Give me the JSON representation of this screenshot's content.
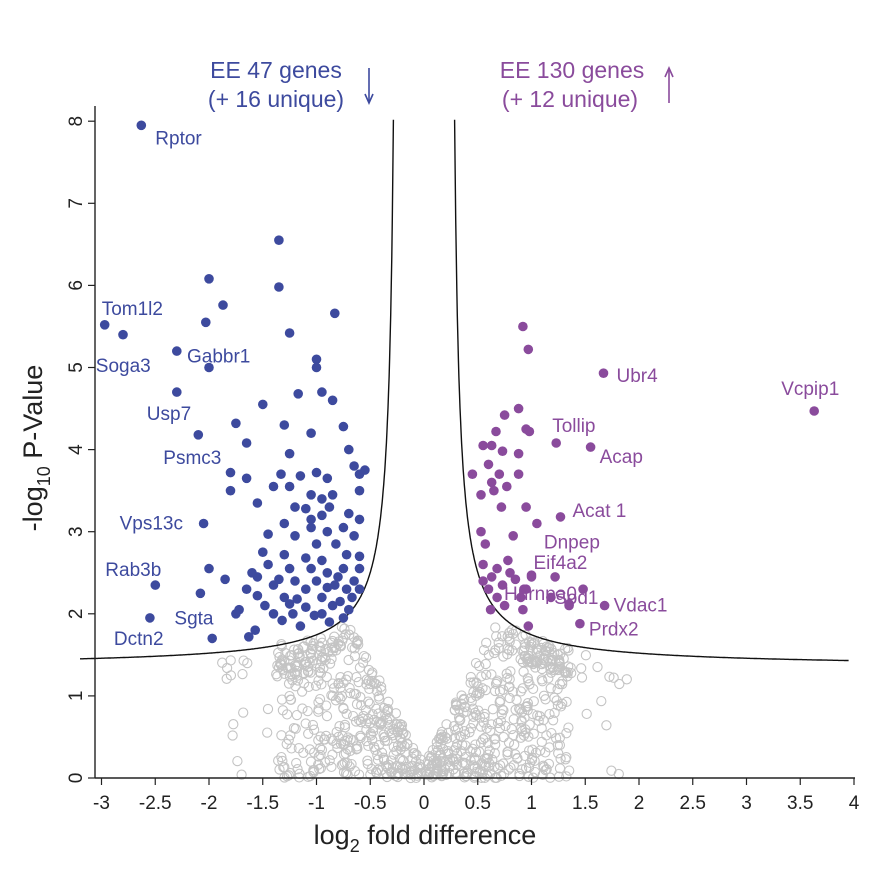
{
  "chart_data": {
    "type": "scatter",
    "title": "",
    "xlabel_main": "log",
    "xlabel_sub": "2",
    "xlabel_rest": " fold difference",
    "ylabel_pre": "-log",
    "ylabel_sub": "10",
    "ylabel_rest": " P-Value",
    "xlim": [
      -3.1,
      4.0
    ],
    "ylim": [
      0,
      8.2
    ],
    "x_ticks": [
      -3,
      -2.5,
      -2,
      -1.5,
      -1,
      -0.5,
      0,
      0.5,
      1,
      1.5,
      2,
      2.5,
      3,
      3.5,
      4
    ],
    "y_ticks": [
      0,
      1,
      2,
      3,
      4,
      5,
      6,
      7,
      8
    ],
    "colors": {
      "down": "#3d4a9e",
      "up": "#8a4b9c",
      "ns": "#c4c4c4",
      "curve": "#111111"
    },
    "annotations": {
      "down_line1": "EE 47 genes",
      "down_line2": "(+ 16 unique)",
      "up_line1": "EE 130 genes",
      "up_line2": "(+ 12 unique)"
    },
    "labeled_down": [
      {
        "name": "Rptor",
        "x": -2.63,
        "y": 7.95
      },
      {
        "name": "Tom1l2",
        "x": -2.97,
        "y": 5.52
      },
      {
        "name": "",
        "x": -2.8,
        "y": 5.4
      },
      {
        "name": "Soga3",
        "x": -2.3,
        "y": 5.2
      },
      {
        "name": "Gabbr1",
        "x": -2.0,
        "y": 5.0
      },
      {
        "name": "Usp7",
        "x": -2.3,
        "y": 4.7
      },
      {
        "name": "Psmc3",
        "x": -2.1,
        "y": 4.18
      },
      {
        "name": "Vps13c",
        "x": -2.05,
        "y": 3.1
      },
      {
        "name": "Rab3b",
        "x": -2.5,
        "y": 2.35
      },
      {
        "name": "Sgta",
        "x": -2.08,
        "y": 2.25
      },
      {
        "name": "Dctn2",
        "x": -2.55,
        "y": 1.95
      }
    ],
    "labeled_up": [
      {
        "name": "Ubr4",
        "x": 1.67,
        "y": 4.93
      },
      {
        "name": "Vcpip1",
        "x": 3.63,
        "y": 4.47
      },
      {
        "name": "Tollip",
        "x": 1.23,
        "y": 4.08
      },
      {
        "name": "Acap",
        "x": 1.55,
        "y": 4.03
      },
      {
        "name": "Acat 1",
        "x": 1.27,
        "y": 3.18
      },
      {
        "name": "Dnpep",
        "x": 1.05,
        "y": 3.1
      },
      {
        "name": "Eif4a2",
        "x": 1.0,
        "y": 2.47
      },
      {
        "name": "Sod1",
        "x": 1.35,
        "y": 2.12
      },
      {
        "name": "Hnrnpa0",
        "x": 0.93,
        "y": 2.3
      },
      {
        "name": "Vdac1",
        "x": 1.68,
        "y": 2.1
      },
      {
        "name": "Prdx2",
        "x": 1.45,
        "y": 1.88
      }
    ],
    "down": [
      [
        -1.35,
        6.55
      ],
      [
        -2.0,
        6.08
      ],
      [
        -1.35,
        5.98
      ],
      [
        -1.87,
        5.76
      ],
      [
        -2.03,
        5.55
      ],
      [
        -0.83,
        5.66
      ],
      [
        -1.25,
        5.42
      ],
      [
        -1.0,
        5.1
      ],
      [
        -1.0,
        5.0
      ],
      [
        -0.95,
        4.7
      ],
      [
        -1.17,
        4.68
      ],
      [
        -0.85,
        4.6
      ],
      [
        -1.5,
        4.55
      ],
      [
        -1.3,
        4.3
      ],
      [
        -0.75,
        4.28
      ],
      [
        -1.05,
        4.2
      ],
      [
        -1.75,
        4.32
      ],
      [
        -1.65,
        4.08
      ],
      [
        -1.25,
        3.95
      ],
      [
        -0.7,
        4.0
      ],
      [
        -0.65,
        3.8
      ],
      [
        -1.8,
        3.72
      ],
      [
        -1.65,
        3.65
      ],
      [
        -1.33,
        3.7
      ],
      [
        -1.15,
        3.68
      ],
      [
        -1.0,
        3.72
      ],
      [
        -0.9,
        3.65
      ],
      [
        -0.6,
        3.7
      ],
      [
        -0.55,
        3.75
      ],
      [
        -1.8,
        3.5
      ],
      [
        -1.4,
        3.55
      ],
      [
        -1.25,
        3.55
      ],
      [
        -1.05,
        3.45
      ],
      [
        -0.95,
        3.4
      ],
      [
        -0.85,
        3.45
      ],
      [
        -0.6,
        3.5
      ],
      [
        -1.55,
        3.35
      ],
      [
        -1.2,
        3.3
      ],
      [
        -1.1,
        3.28
      ],
      [
        -0.95,
        3.2
      ],
      [
        -0.7,
        3.22
      ],
      [
        -0.6,
        3.15
      ],
      [
        -1.3,
        3.1
      ],
      [
        -1.05,
        3.05
      ],
      [
        -0.9,
        3.0
      ],
      [
        -0.75,
        3.05
      ],
      [
        -1.45,
        2.97
      ],
      [
        -1.2,
        2.95
      ],
      [
        -1.0,
        2.85
      ],
      [
        -0.82,
        2.85
      ],
      [
        -0.65,
        2.95
      ],
      [
        -1.5,
        2.75
      ],
      [
        -1.3,
        2.72
      ],
      [
        -1.1,
        2.68
      ],
      [
        -0.95,
        2.65
      ],
      [
        -0.6,
        2.7
      ],
      [
        -1.45,
        2.6
      ],
      [
        -1.25,
        2.55
      ],
      [
        -1.05,
        2.55
      ],
      [
        -0.9,
        2.5
      ],
      [
        -0.75,
        2.55
      ],
      [
        -0.6,
        2.55
      ],
      [
        -1.55,
        2.45
      ],
      [
        -1.35,
        2.42
      ],
      [
        -1.2,
        2.4
      ],
      [
        -1.0,
        2.4
      ],
      [
        -0.8,
        2.45
      ],
      [
        -0.65,
        2.4
      ],
      [
        -1.65,
        2.3
      ],
      [
        -1.4,
        2.35
      ],
      [
        -1.1,
        2.3
      ],
      [
        -0.9,
        2.32
      ],
      [
        -0.72,
        2.3
      ],
      [
        -0.6,
        2.3
      ],
      [
        -1.55,
        2.22
      ],
      [
        -1.3,
        2.2
      ],
      [
        -1.18,
        2.18
      ],
      [
        -0.95,
        2.2
      ],
      [
        -0.78,
        2.15
      ],
      [
        -1.72,
        2.05
      ],
      [
        -1.48,
        2.1
      ],
      [
        -1.25,
        2.12
      ],
      [
        -1.1,
        2.08
      ],
      [
        -0.85,
        2.1
      ],
      [
        -0.7,
        2.05
      ],
      [
        -1.4,
        2.0
      ],
      [
        -1.22,
        2.0
      ],
      [
        -1.02,
        1.98
      ],
      [
        -0.95,
        2.0
      ],
      [
        -1.75,
        2.0
      ],
      [
        -1.32,
        1.92
      ],
      [
        -1.15,
        1.85
      ],
      [
        -0.88,
        1.9
      ],
      [
        -0.75,
        1.95
      ],
      [
        -1.57,
        1.8
      ],
      [
        -1.85,
        2.42
      ],
      [
        -2.0,
        2.55
      ],
      [
        -1.63,
        1.72
      ],
      [
        -1.97,
        1.7
      ],
      [
        -0.67,
        2.2
      ],
      [
        -1.6,
        2.5
      ],
      [
        -0.83,
        2.35
      ],
      [
        -0.72,
        2.72
      ],
      [
        -1.05,
        3.15
      ],
      [
        -0.88,
        3.3
      ]
    ],
    "up": [
      [
        0.92,
        5.5
      ],
      [
        0.97,
        5.22
      ],
      [
        0.88,
        4.5
      ],
      [
        0.75,
        4.42
      ],
      [
        0.95,
        4.25
      ],
      [
        0.67,
        4.22
      ],
      [
        0.98,
        4.22
      ],
      [
        0.63,
        4.05
      ],
      [
        0.55,
        4.05
      ],
      [
        0.73,
        3.98
      ],
      [
        0.88,
        3.95
      ],
      [
        0.6,
        3.82
      ],
      [
        0.7,
        3.7
      ],
      [
        0.45,
        3.7
      ],
      [
        0.63,
        3.6
      ],
      [
        0.77,
        3.55
      ],
      [
        0.88,
        3.7
      ],
      [
        0.65,
        3.5
      ],
      [
        0.53,
        3.45
      ],
      [
        0.72,
        3.3
      ],
      [
        0.95,
        3.3
      ],
      [
        0.53,
        3.0
      ],
      [
        0.83,
        2.95
      ],
      [
        0.57,
        2.85
      ],
      [
        0.78,
        2.65
      ],
      [
        0.68,
        2.55
      ],
      [
        0.63,
        2.45
      ],
      [
        0.55,
        2.4
      ],
      [
        0.85,
        2.42
      ],
      [
        0.73,
        2.35
      ],
      [
        0.95,
        2.3
      ],
      [
        0.6,
        2.3
      ],
      [
        0.68,
        2.2
      ],
      [
        0.9,
        2.2
      ],
      [
        0.75,
        2.1
      ],
      [
        0.92,
        2.05
      ],
      [
        1.18,
        2.2
      ],
      [
        1.35,
        2.1
      ],
      [
        1.22,
        2.45
      ],
      [
        0.97,
        1.85
      ],
      [
        0.62,
        2.05
      ],
      [
        1.48,
        2.3
      ],
      [
        0.8,
        2.5
      ],
      [
        1.0,
        2.45
      ],
      [
        0.55,
        2.6
      ]
    ]
  }
}
